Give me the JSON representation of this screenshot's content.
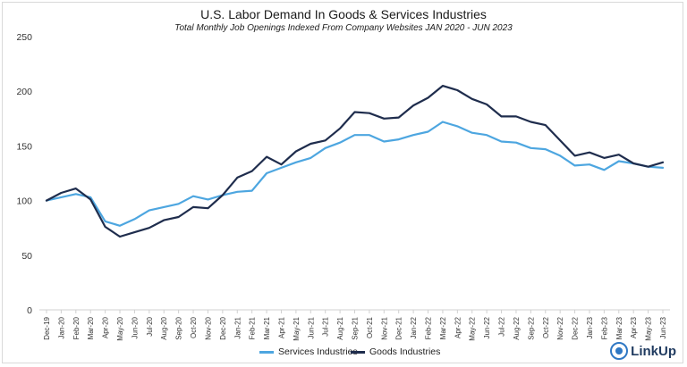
{
  "chart_data": {
    "type": "line",
    "title": "U.S. Labor Demand In Goods & Services Industries",
    "subtitle": "Total Monthly Job Openings Indexed From Company Websites JAN 2020 - JUN 2023",
    "xlabel": "",
    "ylabel": "",
    "ylim": [
      0,
      250
    ],
    "yticks": [
      "0",
      "50",
      "100",
      "150",
      "200",
      "250"
    ],
    "grid": false,
    "legend": "bottom",
    "categories": [
      "Dec-19",
      "Jan-20",
      "Feb-20",
      "Mar-20",
      "Apr-20",
      "May-20",
      "Jun-20",
      "Jul-20",
      "Aug-20",
      "Sep-20",
      "Oct-20",
      "Nov-20",
      "Dec-20",
      "Jan-21",
      "Feb-21",
      "Mar-21",
      "Apr-21",
      "May-21",
      "Jun-21",
      "Jul-21",
      "Aug-21",
      "Sep-21",
      "Oct-21",
      "Nov-21",
      "Dec-21",
      "Jan-22",
      "Feb-22",
      "Mar-22",
      "Apr-22",
      "May-22",
      "Jun-22",
      "Jul-22",
      "Aug-22",
      "Sep-22",
      "Oct-22",
      "Nov-22",
      "Dec-22",
      "Jan-23",
      "Feb-23",
      "Mar-23",
      "Apr-23",
      "May-23",
      "Jun-23"
    ],
    "series": [
      {
        "name": "Services Industries",
        "color": "#4da6e0",
        "values": [
          100,
          103,
          106,
          103,
          81,
          77,
          83,
          91,
          94,
          97,
          104,
          101,
          105,
          108,
          109,
          125,
          130,
          135,
          139,
          148,
          153,
          160,
          160,
          154,
          156,
          160,
          163,
          172,
          168,
          162,
          160,
          154,
          153,
          148,
          147,
          141,
          132,
          133,
          128,
          136,
          134,
          131,
          130
        ]
      },
      {
        "name": "Goods Industries",
        "color": "#1f2d4d",
        "values": [
          100,
          107,
          111,
          101,
          76,
          67,
          71,
          75,
          82,
          85,
          94,
          93,
          105,
          121,
          127,
          140,
          133,
          145,
          152,
          155,
          166,
          181,
          180,
          175,
          176,
          187,
          194,
          205,
          201,
          193,
          188,
          177,
          177,
          172,
          169,
          155,
          141,
          144,
          139,
          142,
          134,
          131,
          135
        ]
      }
    ]
  },
  "logo": {
    "name": "linkup-logo",
    "text": "LinkUp"
  }
}
